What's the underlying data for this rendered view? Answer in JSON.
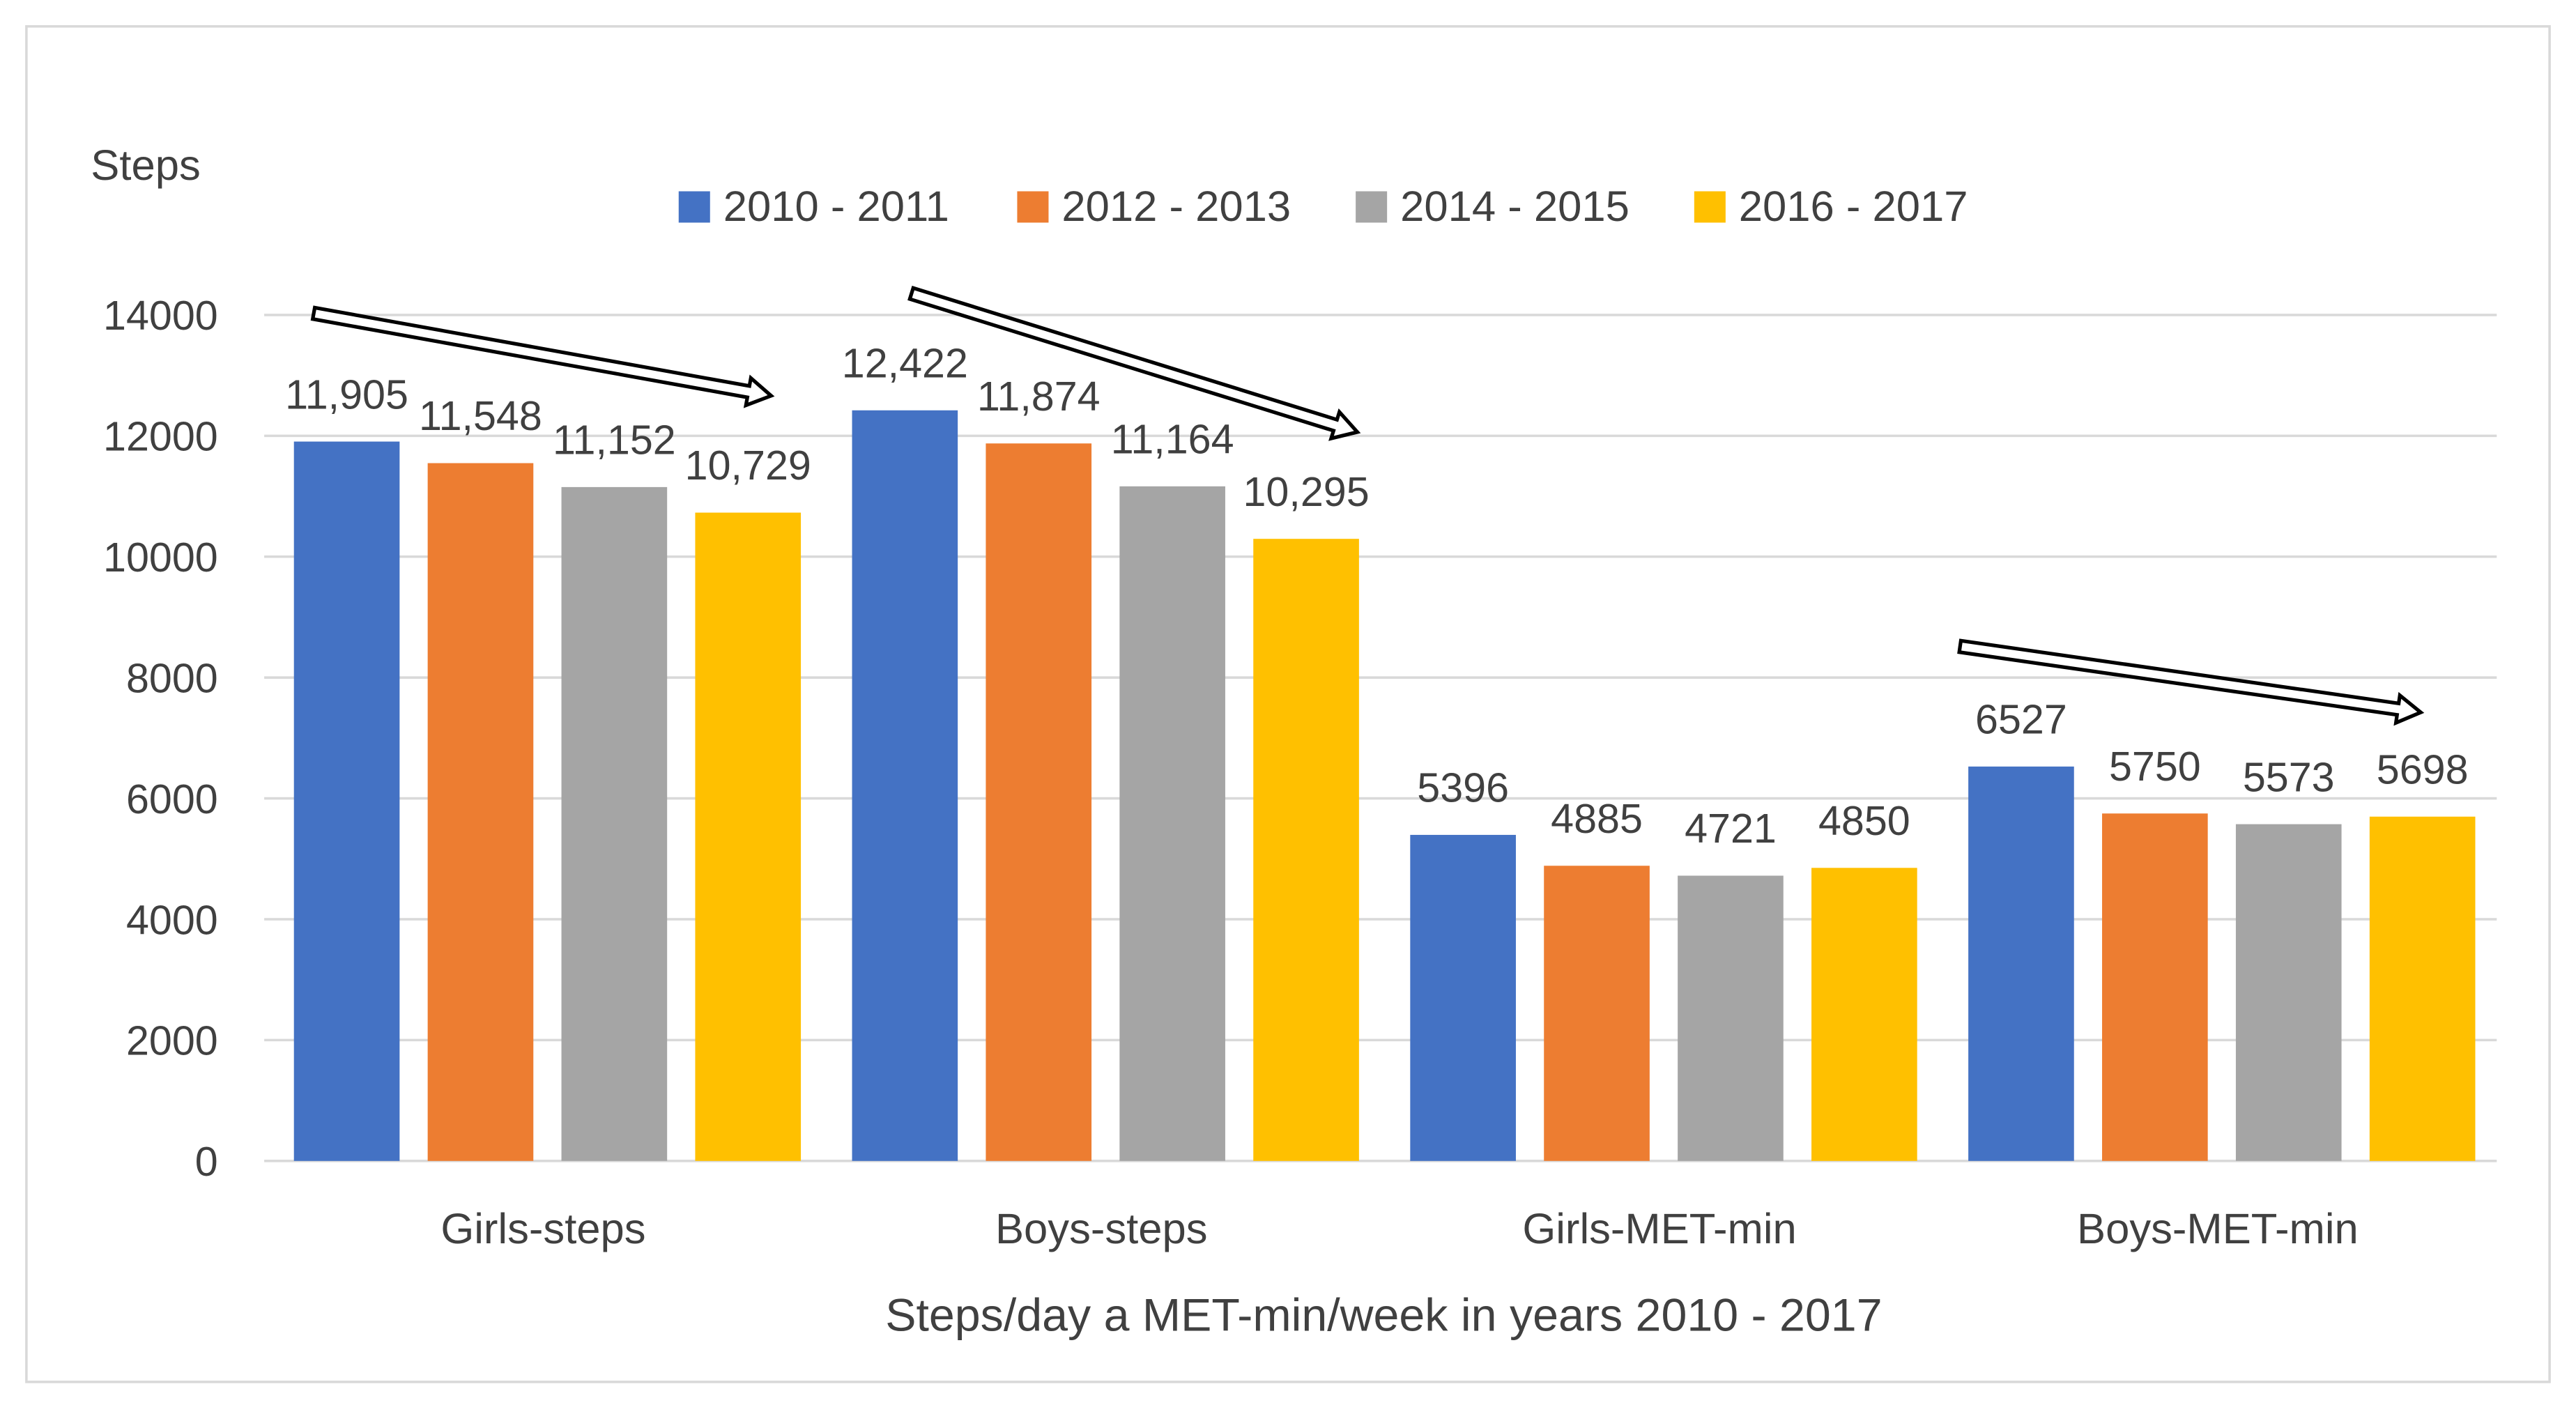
{
  "chart_data": {
    "type": "bar",
    "title": "",
    "ylabel": "Steps",
    "xlabel": "Steps/day a MET-min/week in years 2010 - 2017",
    "categories": [
      "Girls-steps",
      "Boys-steps",
      "Girls-MET-min",
      "Boys-MET-min"
    ],
    "ylim": [
      0,
      14000
    ],
    "yticks": [
      0,
      2000,
      4000,
      6000,
      8000,
      10000,
      12000,
      14000
    ],
    "grid": true,
    "legend_position": "top",
    "series": [
      {
        "name": "2010 - 2011",
        "color": "#4472C4",
        "values": [
          11905,
          12422,
          5396,
          6527
        ],
        "labels": [
          "11,905",
          "12,422",
          "5396",
          "6527"
        ]
      },
      {
        "name": "2012 - 2013",
        "color": "#ED7D31",
        "values": [
          11548,
          11874,
          4885,
          5750
        ],
        "labels": [
          "11,548",
          "11,874",
          "4885",
          "5750"
        ]
      },
      {
        "name": "2014 - 2015",
        "color": "#A5A5A5",
        "values": [
          11152,
          11164,
          4721,
          5573
        ],
        "labels": [
          "11,152",
          "11,164",
          "4721",
          "5573"
        ]
      },
      {
        "name": "2016 - 2017",
        "color": "#FFC000",
        "values": [
          10729,
          10295,
          4850,
          5698
        ],
        "labels": [
          "10,729",
          "10,295",
          "4850",
          "5698"
        ]
      }
    ],
    "annotations": [
      {
        "type": "trend-arrow",
        "category": "Girls-steps",
        "direction": "down"
      },
      {
        "type": "trend-arrow",
        "category": "Boys-steps",
        "direction": "down"
      },
      {
        "type": "trend-arrow",
        "category": "Boys-MET-min",
        "direction": "down"
      }
    ]
  }
}
